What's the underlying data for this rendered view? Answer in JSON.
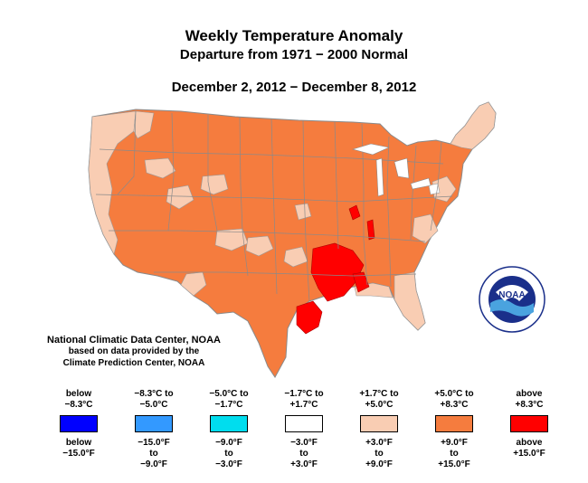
{
  "title": "Weekly Temperature Anomaly",
  "subtitle": "Departure from 1971 − 2000 Normal",
  "date_range": "December 2, 2012 − December 8, 2012",
  "credit": {
    "line1": "National Climatic Data Center, NOAA",
    "line2": "based on data provided by the",
    "line3": "Climate Prediction Center, NOAA"
  },
  "logo_text": "NOAA",
  "colors": {
    "below_8_3C": "#0000ff",
    "m8_3_to_m5_0": "#3399ff",
    "m5_0_to_m1_7": "#00ddee",
    "m1_7_to_p1_7": "#ffffff",
    "p1_7_to_p5_0": "#f9cdb3",
    "p5_0_to_p8_3": "#f57c3e",
    "above_8_3C": "#ff0000",
    "boundary": "#999999"
  },
  "legend": [
    {
      "c1": "below",
      "c2": "−8.3°C",
      "f1": "below",
      "f2": "−15.0°F",
      "color": "#0000ff"
    },
    {
      "c1": "−8.3°C to",
      "c2": "−5.0°C",
      "f1": "−15.0°F",
      "f2": "to",
      "f3": "−9.0°F",
      "color": "#3399ff"
    },
    {
      "c1": "−5.0°C to",
      "c2": "−1.7°C",
      "f1": "−9.0°F",
      "f2": "to",
      "f3": "−3.0°F",
      "color": "#00ddee"
    },
    {
      "c1": "−1.7°C to",
      "c2": "+1.7°C",
      "f1": "−3.0°F",
      "f2": "to",
      "f3": "+3.0°F",
      "color": "#ffffff"
    },
    {
      "c1": "+1.7°C to",
      "c2": "+5.0°C",
      "f1": "+3.0°F",
      "f2": "to",
      "f3": "+9.0°F",
      "color": "#f9cdb3"
    },
    {
      "c1": "+5.0°C to",
      "c2": "+8.3°C",
      "f1": "+9.0°F",
      "f2": "to",
      "f3": "+15.0°F",
      "color": "#f57c3e"
    },
    {
      "c1": "above",
      "c2": "+8.3°C",
      "f1": "above",
      "f2": "+15.0°F",
      "color": "#ff0000"
    }
  ]
}
